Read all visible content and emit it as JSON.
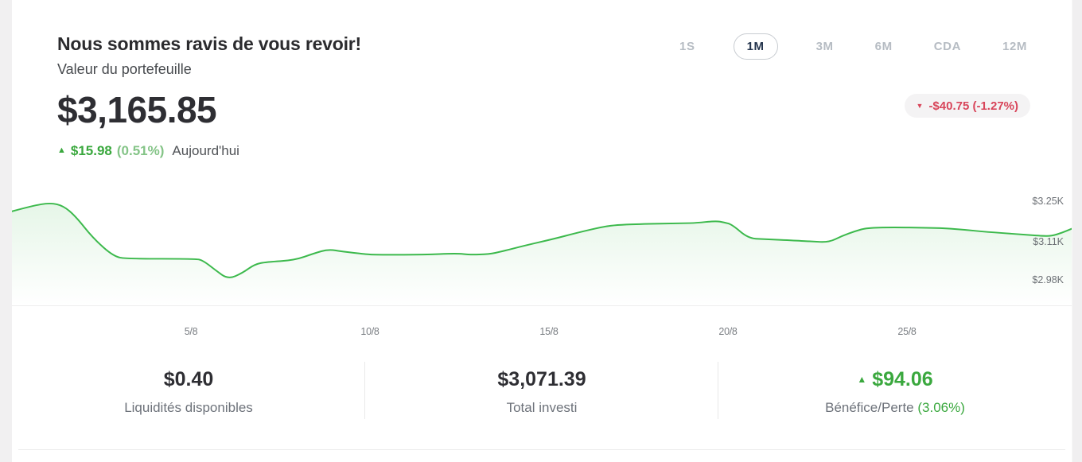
{
  "header": {
    "title": "Nous sommes ravis de vous revoir!",
    "subtitle": "Valeur du portefeuille",
    "portfolio_value": "$3,165.85",
    "change_up_icon": "▲",
    "change_amount": "$15.98",
    "change_percent": "(0.51%)",
    "change_period": "Aujourd'hui"
  },
  "range_tabs": [
    {
      "label": "1S",
      "active": false
    },
    {
      "label": "1M",
      "active": true
    },
    {
      "label": "3M",
      "active": false
    },
    {
      "label": "6M",
      "active": false
    },
    {
      "label": "CDA",
      "active": false
    },
    {
      "label": "12M",
      "active": false
    }
  ],
  "period_change_badge": {
    "icon": "▼",
    "text": "-$40.75 (-1.27%)"
  },
  "chart_data": {
    "type": "area",
    "title": "Valeur du portefeuille (1M)",
    "x_tick_labels": [
      "5/8",
      "10/8",
      "15/8",
      "20/8",
      "25/8"
    ],
    "x_tick_days": [
      5,
      10,
      15,
      20,
      25
    ],
    "x_domain_days": [
      0,
      29.6
    ],
    "y_tick_labels": [
      "$3.25K",
      "$3.11K",
      "$2.98K"
    ],
    "y_tick_values": [
      3250,
      3110,
      2980
    ],
    "y_domain_dollars": [
      2890,
      3264
    ],
    "grid": "off",
    "legend": "none",
    "points": [
      [
        0,
        3215
      ],
      [
        0.56,
        3234
      ],
      [
        1.07,
        3245
      ],
      [
        1.44,
        3234
      ],
      [
        1.78,
        3198
      ],
      [
        2.27,
        3122
      ],
      [
        2.84,
        3059
      ],
      [
        3.22,
        3051
      ],
      [
        5.11,
        3051
      ],
      [
        5.33,
        3046
      ],
      [
        5.67,
        3013
      ],
      [
        6.04,
        2980
      ],
      [
        6.44,
        3002
      ],
      [
        6.78,
        3032
      ],
      [
        7.11,
        3040
      ],
      [
        7.89,
        3046
      ],
      [
        8.44,
        3070
      ],
      [
        8.84,
        3084
      ],
      [
        9.22,
        3076
      ],
      [
        9.89,
        3067
      ],
      [
        10.11,
        3065
      ],
      [
        11.44,
        3065
      ],
      [
        12.44,
        3070
      ],
      [
        12.78,
        3065
      ],
      [
        13.33,
        3067
      ],
      [
        13.67,
        3076
      ],
      [
        14.33,
        3097
      ],
      [
        15.11,
        3119
      ],
      [
        15.78,
        3141
      ],
      [
        16.56,
        3163
      ],
      [
        16.89,
        3168
      ],
      [
        17.44,
        3171
      ],
      [
        18.78,
        3174
      ],
      [
        19.11,
        3175
      ],
      [
        19.67,
        3182
      ],
      [
        19.89,
        3177
      ],
      [
        20.11,
        3170
      ],
      [
        20.56,
        3122
      ],
      [
        21,
        3119
      ],
      [
        21.89,
        3114
      ],
      [
        22.33,
        3111
      ],
      [
        22.82,
        3108
      ],
      [
        23.18,
        3130
      ],
      [
        23.56,
        3147
      ],
      [
        23.89,
        3158
      ],
      [
        24.56,
        3160
      ],
      [
        25.89,
        3158
      ],
      [
        26.56,
        3152
      ],
      [
        27.22,
        3144
      ],
      [
        28.11,
        3136
      ],
      [
        28.78,
        3130
      ],
      [
        29.04,
        3130
      ],
      [
        29.33,
        3141
      ],
      [
        29.6,
        3155
      ]
    ]
  },
  "stats": [
    {
      "value": "$0.40",
      "label": "Liquidités disponibles"
    },
    {
      "value": "$3,071.39",
      "label": "Total investi"
    },
    {
      "value": "$94.06",
      "icon": "▲",
      "label": "Bénéfice/Perte",
      "percent": "(3.06%)",
      "positive": true
    }
  ],
  "colors": {
    "green": "#3aa83e",
    "green_light": "#84c487",
    "red": "#d8455a",
    "chart_line": "#3cb94c",
    "tab_active": "#25354d",
    "tab_inactive": "#b6bcc3"
  }
}
